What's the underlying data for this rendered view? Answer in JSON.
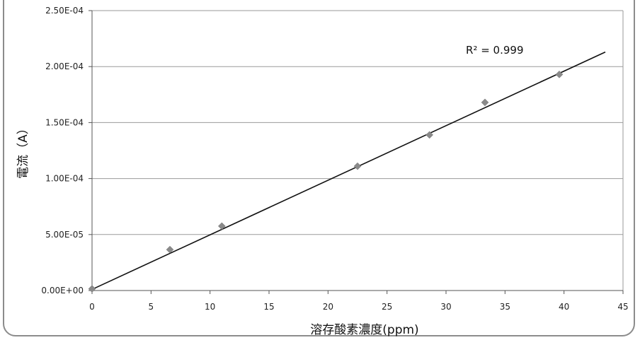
{
  "chart_data": {
    "type": "scatter",
    "title": "",
    "xlabel": "溶存酸素濃度(ppm)",
    "ylabel": "電流（A）",
    "xlim": [
      0,
      45
    ],
    "ylim": [
      0,
      0.00025
    ],
    "x_ticks": [
      0,
      5,
      10,
      15,
      20,
      25,
      30,
      35,
      40,
      45
    ],
    "x_tick_labels": [
      "0",
      "5",
      "10",
      "15",
      "20",
      "25",
      "30",
      "35",
      "40",
      "45"
    ],
    "y_ticks": [
      0,
      5e-05,
      0.0001,
      0.00015,
      0.0002,
      0.00025
    ],
    "y_tick_labels": [
      "0.00E+00",
      "5.00E-05",
      "1.00E-04",
      "1.50E-04",
      "2.00E-04",
      "2.50E-04"
    ],
    "grid": "horizontal",
    "legend": "none",
    "series": [
      {
        "x": [
          0,
          6.6,
          11,
          22.5,
          28.6,
          33.3,
          39.6
        ],
        "y": [
          1.5e-06,
          3.65e-05,
          5.75e-05,
          0.000111,
          0.000139,
          0.000168,
          0.000193
        ],
        "marker": "diamond",
        "color": "#8a8a8a"
      }
    ],
    "trendline": {
      "x": [
        0,
        43.5
      ],
      "y": [
        1e-06,
        0.000213
      ],
      "color": "#111111",
      "annotation": "R² = 0.999"
    }
  }
}
